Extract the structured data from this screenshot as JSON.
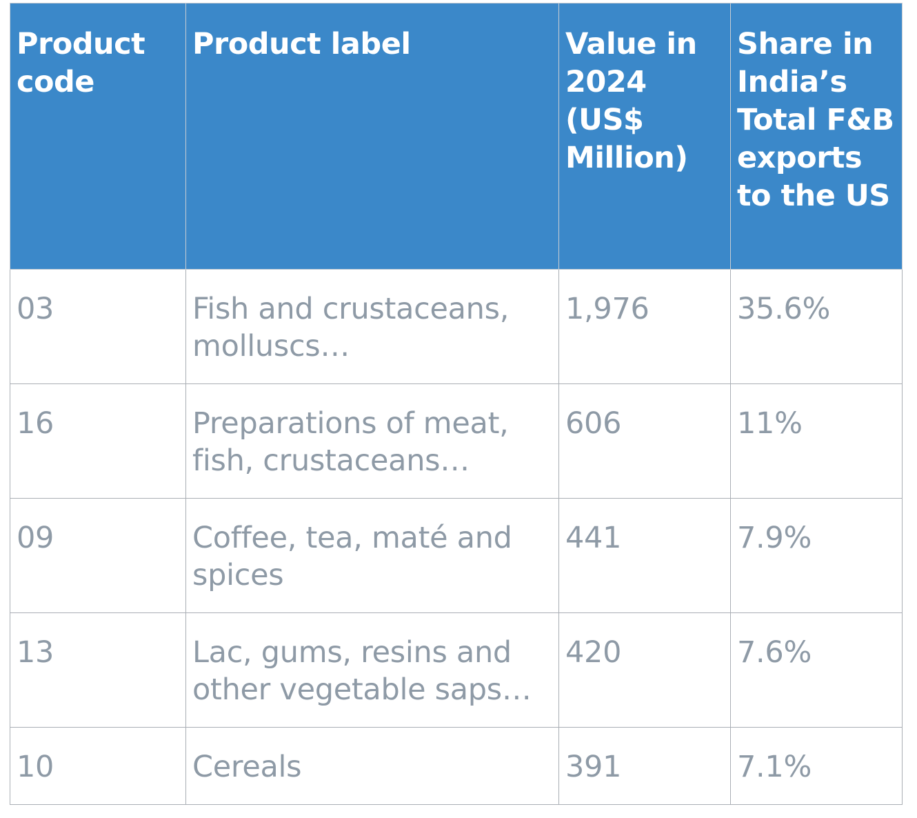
{
  "table": {
    "headers": [
      "Product code",
      "Product label",
      "Value in 2024 (US$ Million)",
      "Share in India’s Total F&B exports to the US"
    ],
    "rows": [
      {
        "code": "03",
        "label": "Fish and crustaceans, molluscs…",
        "value": "1,976",
        "share": "35.6%"
      },
      {
        "code": "16",
        "label": "Preparations of meat, fish, crustaceans…",
        "value": "606",
        "share": "11%"
      },
      {
        "code": "09",
        "label": "Coffee, tea, maté and spices",
        "value": "441",
        "share": "7.9%"
      },
      {
        "code": "13",
        "label": "Lac, gums, resins and other vegetable saps…",
        "value": "420",
        "share": "7.6%"
      },
      {
        "code": "10",
        "label": "Cereals",
        "value": "391",
        "share": "7.1%"
      }
    ]
  },
  "colors": {
    "header_bg": "#3b88c9",
    "header_text": "#ffffff",
    "body_text": "#8e9aa6",
    "grid": "#a9aeb4"
  }
}
